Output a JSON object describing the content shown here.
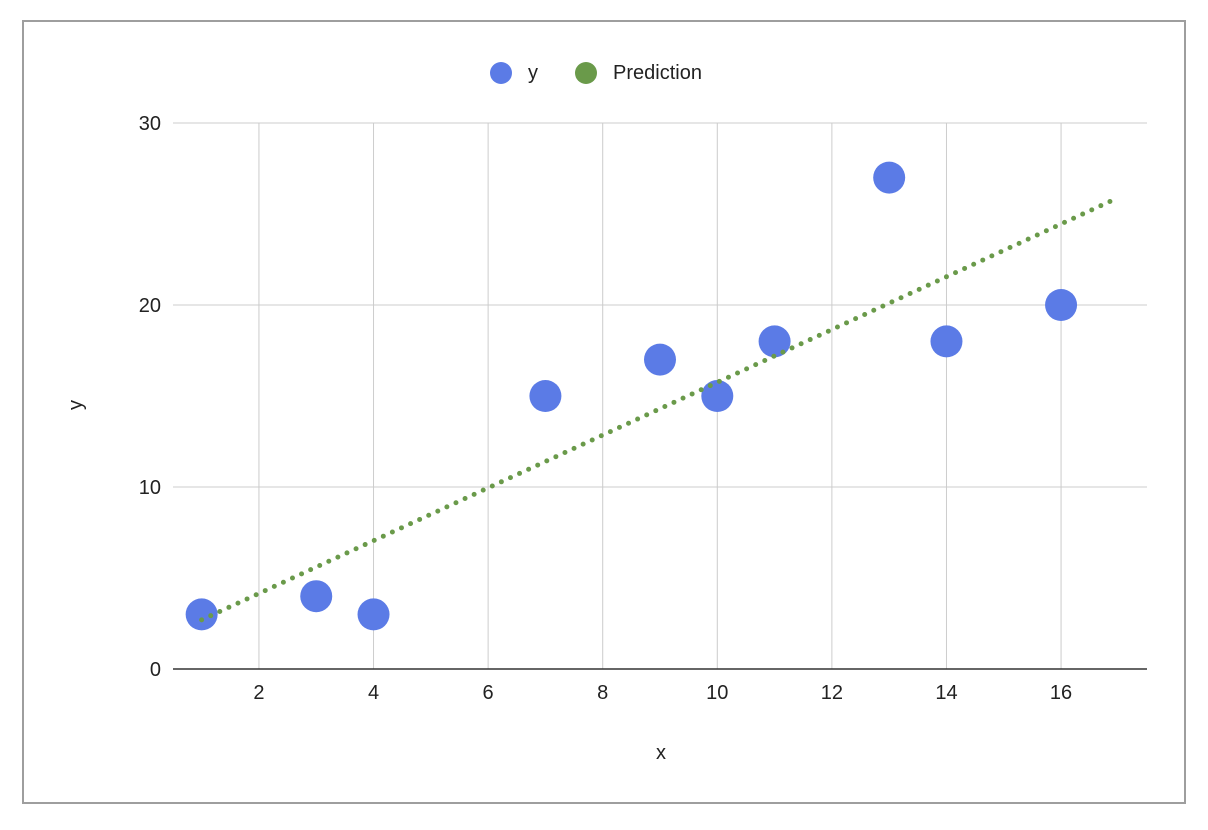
{
  "chart_data": {
    "type": "scatter",
    "title": "",
    "xlabel": "x",
    "ylabel": "y",
    "xlim": [
      0.5,
      17.5
    ],
    "ylim": [
      0,
      30
    ],
    "x_ticks": [
      2,
      4,
      6,
      8,
      10,
      12,
      14,
      16
    ],
    "y_ticks": [
      0,
      10,
      20,
      30
    ],
    "grid": true,
    "legend_position": "top-center",
    "series": [
      {
        "name": "y",
        "type": "scatter",
        "color": "#5b7be6",
        "x": [
          1,
          3,
          4,
          7,
          9,
          10,
          11,
          13,
          14,
          16
        ],
        "y": [
          3,
          4,
          3,
          15,
          17,
          15,
          18,
          27,
          18,
          20
        ]
      },
      {
        "name": "Prediction",
        "type": "trendline-dotted",
        "color": "#6a9a4a",
        "x": [
          1,
          17
        ],
        "y": [
          2.7,
          25.9
        ]
      }
    ]
  }
}
